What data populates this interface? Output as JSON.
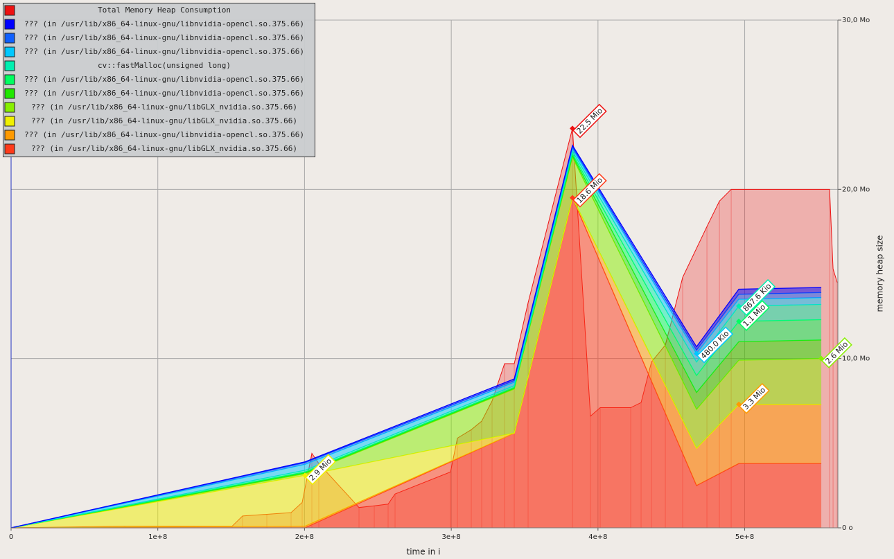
{
  "chart_data": {
    "type": "stacked-area",
    "xlabel": "time in i",
    "ylabel": "memory heap size",
    "xlim": [
      0,
      563500000
    ],
    "ylim": [
      0,
      30
    ],
    "xticks": [
      0,
      {
        "value": 100000000,
        "label": "1e+8"
      },
      {
        "value": 200000000,
        "label": "2e+8"
      },
      {
        "value": 300000000,
        "label": "3e+8"
      },
      {
        "value": 400000000,
        "label": "4e+8"
      },
      {
        "value": 500000000,
        "label": "5e+8"
      }
    ],
    "yticks": [
      {
        "value": 0,
        "label": "0 o"
      },
      {
        "value": 10,
        "label": "10,0 Mo"
      },
      {
        "value": 20,
        "label": "20,0 Mo"
      },
      {
        "value": 30,
        "label": "30,0 Mo"
      }
    ],
    "grid": true,
    "legend": "top-left",
    "total": {
      "name": "Total Memory Heap Consumption",
      "color": "#ee1111",
      "x": [
        0,
        77468000,
        150685000,
        157770000,
        174303000,
        190836000,
        198394000,
        205007000,
        209731000,
        237128000,
        247520000,
        256967000,
        261691000,
        299480000,
        304204000,
        313651000,
        320737000,
        327822000,
        336325000,
        342938000,
        352385000,
        382616000,
        394898000,
        401511000,
        422295000,
        429381000,
        436466000,
        445913000,
        457723000,
        474255000,
        482758000,
        490788000,
        557864000,
        560226000,
        563060000
      ],
      "values": [
        0,
        0.1,
        0.1,
        0.7,
        0.8,
        0.9,
        1.5,
        4.4,
        3.8,
        1.2,
        1.3,
        1.4,
        2.0,
        3.3,
        5.3,
        5.8,
        6.3,
        7.5,
        9.7,
        9.7,
        13.3,
        23.6,
        6.6,
        7.1,
        7.1,
        7.4,
        9.8,
        10.8,
        14.8,
        17.8,
        19.3,
        20.0,
        20.0,
        15.3,
        14.5
      ],
      "value_labels": [
        null,
        null,
        null,
        null,
        null,
        null,
        null,
        null,
        null,
        null,
        null,
        null,
        null,
        null,
        null,
        null,
        null,
        null,
        null,
        null,
        null,
        "22.5 Mio",
        null,
        null,
        null,
        null,
        null,
        null,
        null,
        null,
        null,
        null,
        null,
        null,
        null
      ]
    },
    "x": [
      0,
      200283000,
      342938000,
      382616000,
      467170000,
      495984000,
      552196000
    ],
    "series": [
      {
        "name": "??? (in /usr/lib/x86_64-linux-gnu/libnvidia-opencl.so.375.66)",
        "color": "#0000ff",
        "values": [
          0,
          0.05,
          0.1,
          0.1,
          0.2,
          0.3,
          0.3
        ]
      },
      {
        "name": "??? (in /usr/lib/x86_64-linux-gnu/libnvidia-opencl.so.375.66)",
        "color": "#1060ff",
        "values": [
          0,
          0.1,
          0.1,
          0.1,
          0.2,
          0.3,
          0.3
        ]
      },
      {
        "name": "??? (in /usr/lib/x86_64-linux-gnu/libnvidia-opencl.so.375.66)",
        "color": "#00c8ff",
        "values": [
          0,
          0.35,
          0.2,
          0.15,
          0.5,
          0.4,
          0.4
        ],
        "value_labels": [
          null,
          null,
          null,
          null,
          "480.0 Kio",
          null,
          null
        ]
      },
      {
        "name": "cv::fastMalloc(unsigned long)",
        "color": "#00f0b0",
        "values": [
          0,
          0.1,
          0.1,
          0.15,
          0.8,
          0.9,
          0.9
        ],
        "value_labels": [
          null,
          null,
          null,
          null,
          null,
          "867.6 Kio",
          null
        ]
      },
      {
        "name": "??? (in /usr/lib/x86_64-linux-gnu/libnvidia-opencl.so.375.66)",
        "color": "#00ff60",
        "values": [
          0,
          0.05,
          0.05,
          0.1,
          1.0,
          1.2,
          1.2
        ],
        "value_labels": [
          null,
          null,
          null,
          null,
          null,
          "1.1 Mio",
          null
        ]
      },
      {
        "name": "??? (in /usr/lib/x86_64-linux-gnu/libnvidia-opencl.so.375.66)",
        "color": "#20e800",
        "values": [
          0,
          0.05,
          0.05,
          0.1,
          1.0,
          1.1,
          1.1
        ]
      },
      {
        "name": "??? (in /usr/lib/x86_64-linux-gnu/libGLX_nvidia.so.375.66)",
        "color": "#88f000",
        "values": [
          0,
          0.1,
          2.6,
          2.4,
          2.3,
          2.6,
          2.7
        ],
        "value_labels": [
          null,
          null,
          null,
          null,
          null,
          null,
          "2.6 Mio"
        ]
      },
      {
        "name": "??? (in /usr/lib/x86_64-linux-gnu/libGLX_nvidia.so.375.66)",
        "color": "#f0f000",
        "values": [
          0,
          3.0,
          0,
          0,
          0,
          0,
          0
        ],
        "value_labels": [
          null,
          "2.9 Mio",
          null,
          null,
          null,
          null,
          null
        ]
      },
      {
        "name": "??? (in /usr/lib/x86_64-linux-gnu/libnvidia-opencl.so.375.66)",
        "color": "#ff9a00",
        "values": [
          0,
          0.1,
          0,
          0,
          2.2,
          3.5,
          3.5
        ],
        "value_labels": [
          null,
          null,
          null,
          null,
          null,
          "3.3 Mio",
          null
        ]
      },
      {
        "name": "??? (in /usr/lib/x86_64-linux-gnu/libGLX_nvidia.so.375.66)",
        "color": "#ff3a1a",
        "values": [
          0,
          0,
          5.6,
          19.5,
          2.5,
          3.8,
          3.8
        ],
        "value_labels": [
          null,
          null,
          null,
          "18.6 Mio",
          null,
          null,
          null
        ]
      }
    ]
  }
}
